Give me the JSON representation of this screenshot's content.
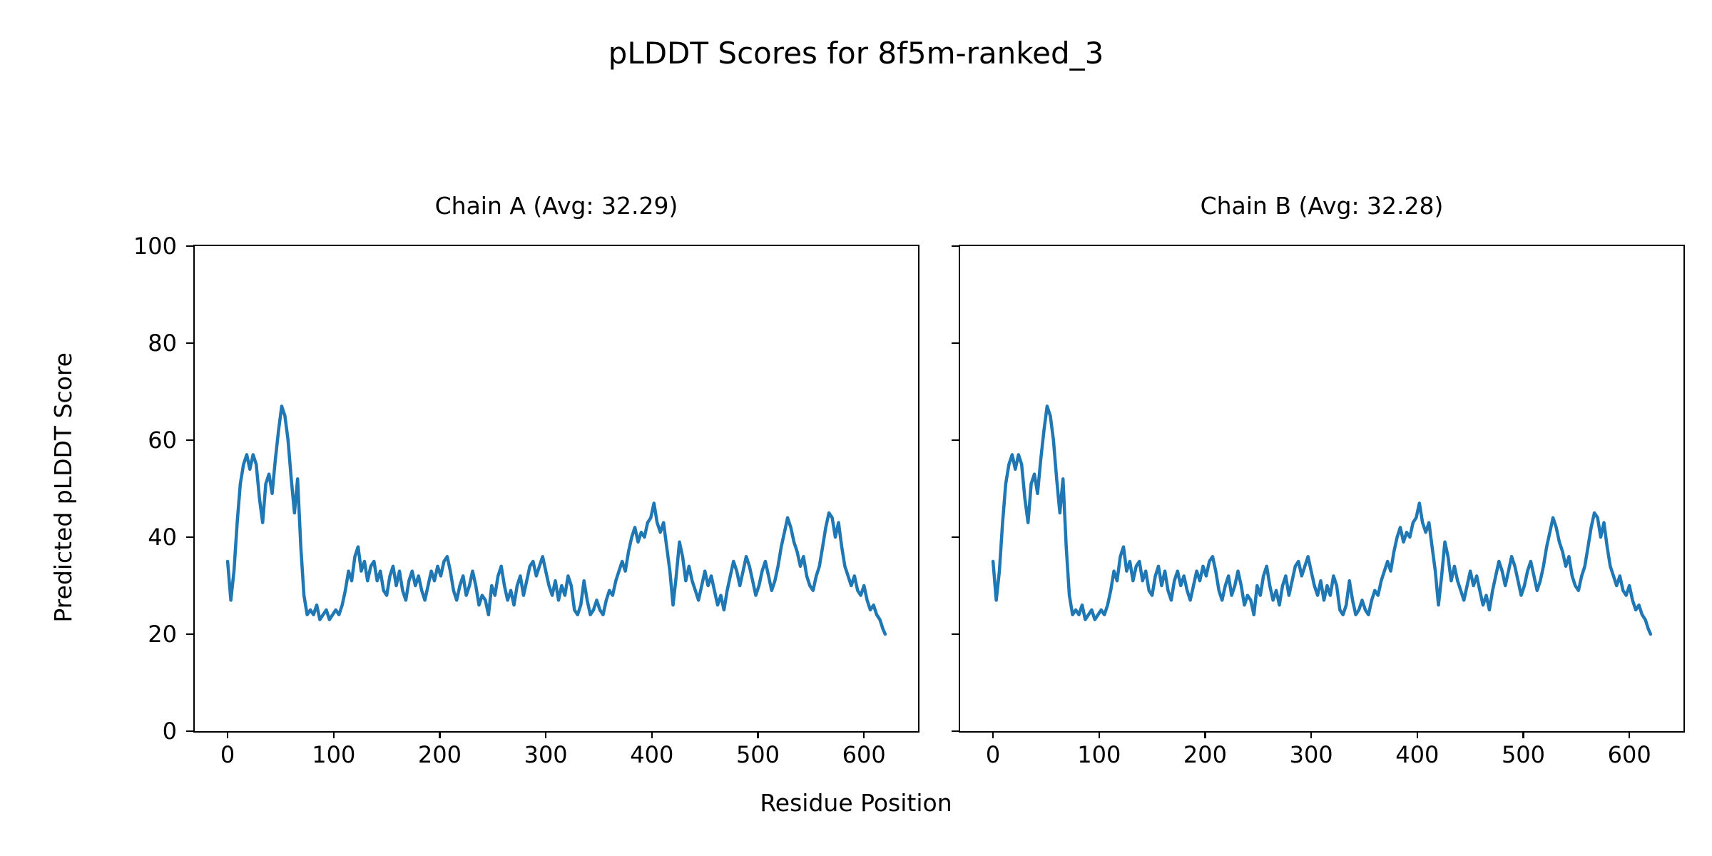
{
  "chart_data": {
    "type": "line",
    "title": "pLDDT Scores for 8f5m-ranked_3",
    "xlabel": "Residue Position",
    "ylabel": "Predicted pLDDT Score",
    "xlim": [
      -31,
      651
    ],
    "ylim": [
      0,
      100
    ],
    "xticks": [
      0,
      100,
      200,
      300,
      400,
      500,
      600
    ],
    "yticks": [
      0,
      20,
      40,
      60,
      80,
      100
    ],
    "grid": false,
    "legend_position": "none",
    "line_color": "#1f77b4",
    "x_step": 3,
    "x_max": 620,
    "subplots": [
      {
        "title": "Chain A (Avg: 32.29)",
        "chain": "A",
        "avg_plddt": 32.29,
        "show_ytick_labels": true
      },
      {
        "title": "Chain B (Avg: 32.28)",
        "chain": "B",
        "avg_plddt": 32.28,
        "show_ytick_labels": false
      }
    ],
    "plddt_values": [
      35,
      27,
      33,
      43,
      51,
      55,
      57,
      54,
      57,
      55,
      48,
      43,
      51,
      53,
      49,
      56,
      62,
      67,
      65,
      60,
      52,
      45,
      52,
      38,
      28,
      24,
      25,
      24,
      26,
      23,
      24,
      25,
      23,
      24,
      25,
      24,
      26,
      29,
      33,
      31,
      36,
      38,
      33,
      35,
      31,
      34,
      35,
      31,
      33,
      29,
      28,
      32,
      34,
      30,
      33,
      29,
      27,
      31,
      33,
      30,
      32,
      29,
      27,
      30,
      33,
      31,
      34,
      32,
      35,
      36,
      33,
      29,
      27,
      30,
      32,
      28,
      30,
      33,
      30,
      26,
      28,
      27,
      24,
      30,
      28,
      32,
      34,
      30,
      27,
      29,
      26,
      30,
      32,
      28,
      31,
      34,
      35,
      32,
      34,
      36,
      33,
      30,
      28,
      31,
      27,
      30,
      28,
      32,
      30,
      25,
      24,
      26,
      31,
      27,
      24,
      25,
      27,
      25,
      24,
      27,
      29,
      28,
      31,
      33,
      35,
      33,
      37,
      40,
      42,
      39,
      41,
      40,
      43,
      44,
      47,
      43,
      41,
      43,
      38,
      33,
      26,
      32,
      39,
      36,
      31,
      34,
      31,
      29,
      27,
      30,
      33,
      30,
      32,
      29,
      26,
      28,
      25,
      29,
      32,
      35,
      33,
      30,
      33,
      36,
      34,
      31,
      28,
      30,
      33,
      35,
      32,
      29,
      31,
      34,
      38,
      41,
      44,
      42,
      39,
      37,
      34,
      36,
      32,
      30,
      29,
      32,
      34,
      38,
      42,
      45,
      44,
      40,
      43,
      38,
      34,
      32,
      30,
      32,
      29,
      28,
      30,
      27,
      25,
      26,
      24,
      23,
      21,
      20
    ]
  }
}
